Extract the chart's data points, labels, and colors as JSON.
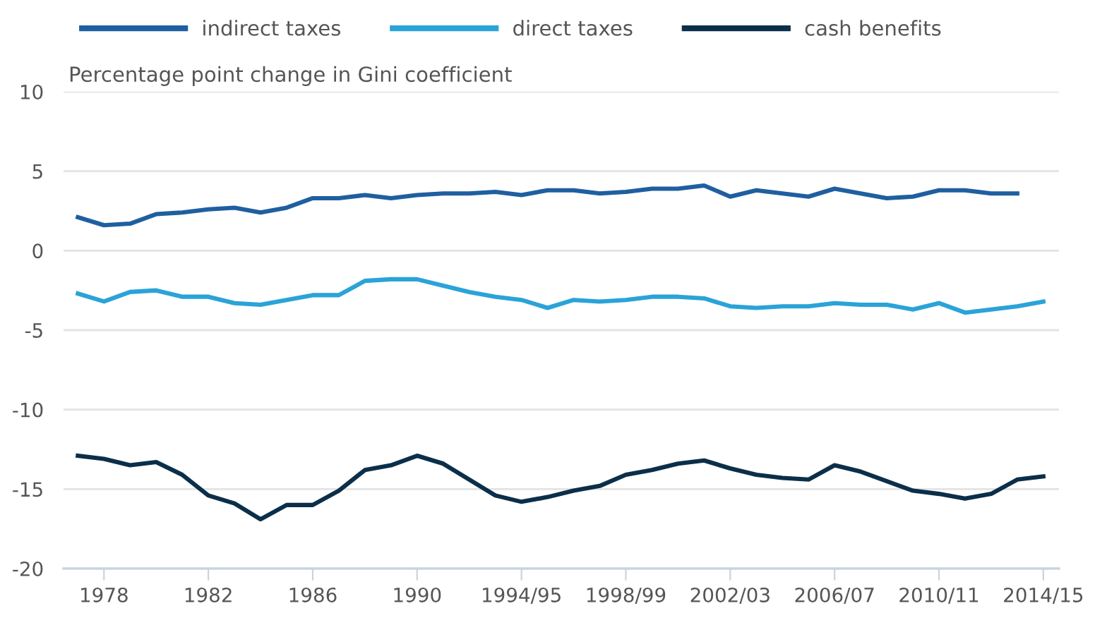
{
  "chart_data": {
    "type": "line",
    "ylabel": "Percentage point change in Gini coefficient",
    "categories": [
      null,
      "1978",
      null,
      null,
      null,
      "1982",
      null,
      null,
      null,
      "1986",
      null,
      null,
      null,
      "1990",
      null,
      null,
      null,
      "1994/95",
      null,
      null,
      null,
      "1998/99",
      null,
      null,
      null,
      "2002/03",
      null,
      null,
      null,
      "2006/07",
      null,
      null,
      null,
      "2010/11",
      null,
      null,
      null,
      "2014/15"
    ],
    "series": [
      {
        "name": "indirect taxes",
        "color": "#1f5fa0",
        "values": [
          2.1,
          1.6,
          1.7,
          2.3,
          2.4,
          2.6,
          2.7,
          2.4,
          2.7,
          3.3,
          3.3,
          3.5,
          3.3,
          3.5,
          3.6,
          3.6,
          3.7,
          3.5,
          3.8,
          3.8,
          3.6,
          3.7,
          3.9,
          3.9,
          4.1,
          3.4,
          3.8,
          3.6,
          3.4,
          3.9,
          3.6,
          3.3,
          3.4,
          3.8,
          3.8,
          3.6,
          3.6,
          null
        ]
      },
      {
        "name": "direct taxes",
        "color": "#2aa3d8",
        "values": [
          -2.7,
          -3.2,
          -2.6,
          -2.5,
          -2.9,
          -2.9,
          -3.3,
          -3.4,
          -3.1,
          -2.8,
          -2.8,
          -1.9,
          -1.8,
          -1.8,
          -2.2,
          -2.6,
          -2.9,
          -3.1,
          -3.6,
          -3.1,
          -3.2,
          -3.1,
          -2.9,
          -2.9,
          -3.0,
          -3.5,
          -3.6,
          -3.5,
          -3.5,
          -3.3,
          -3.4,
          -3.4,
          -3.7,
          -3.3,
          -3.9,
          -3.7,
          -3.5,
          -3.2
        ]
      },
      {
        "name": "cash benefits",
        "color": "#0b2f4a",
        "values": [
          -12.9,
          -13.1,
          -13.5,
          -13.3,
          -14.1,
          -15.4,
          -15.9,
          -16.9,
          -16.0,
          -16.0,
          -15.1,
          -13.8,
          -13.5,
          -12.9,
          -13.4,
          -14.4,
          -15.4,
          -15.8,
          -15.5,
          -15.1,
          -14.8,
          -14.1,
          -13.8,
          -13.4,
          -13.2,
          -13.7,
          -14.1,
          -14.3,
          -14.4,
          -13.5,
          -13.9,
          -14.5,
          -15.1,
          -15.3,
          -15.6,
          -15.3,
          -14.4,
          -14.2
        ]
      }
    ],
    "ylim": [
      -20,
      10
    ],
    "yticks": [
      -20,
      -15,
      -10,
      -5,
      0,
      5,
      10
    ],
    "grid": "y",
    "legend": "top",
    "marker": "none",
    "line_style": "solid"
  }
}
